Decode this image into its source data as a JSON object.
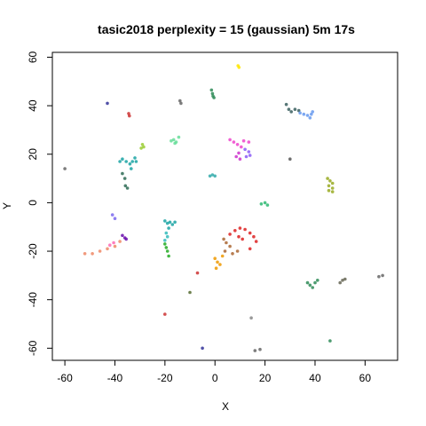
{
  "chart_data": {
    "type": "scatter",
    "title": "tasic2018 perplexity = 15 (gaussian) 5m 17s",
    "xlabel": "X",
    "ylabel": "Y",
    "xlim": [
      -65,
      73
    ],
    "ylim": [
      -65,
      62
    ],
    "xticks": [
      -60,
      -40,
      -20,
      0,
      20,
      40,
      60
    ],
    "yticks": [
      -60,
      -40,
      -20,
      0,
      20,
      40,
      60
    ],
    "grid": false,
    "legend": "none",
    "clusters": [
      {
        "color": "#ffe600",
        "points": [
          [
            9.2,
            56.5
          ],
          [
            9.6,
            55.8
          ]
        ]
      },
      {
        "color": "#333399",
        "points": [
          [
            -43.0,
            41.0
          ]
        ]
      },
      {
        "color": "#cc3333",
        "points": [
          [
            -34.5,
            36.8
          ],
          [
            -34.2,
            35.8
          ]
        ]
      },
      {
        "color": "#666666",
        "points": [
          [
            -60.0,
            14.0
          ]
        ]
      },
      {
        "color": "#666666",
        "points": [
          [
            -14.0,
            42.0
          ],
          [
            -13.6,
            41.0
          ]
        ]
      },
      {
        "color": "#2e8b57",
        "points": [
          [
            -1.4,
            46.5
          ],
          [
            -1.0,
            45.0
          ],
          [
            -0.8,
            44.0
          ],
          [
            -0.4,
            43.3
          ]
        ]
      },
      {
        "color": "#3a5f5f",
        "points": [
          [
            28.5,
            40.5
          ],
          [
            29.5,
            38.5
          ],
          [
            30.5,
            37.5
          ],
          [
            32.0,
            38.5
          ],
          [
            33.5,
            38.0
          ]
        ]
      },
      {
        "color": "#6699ee",
        "points": [
          [
            34.0,
            37.0
          ],
          [
            35.5,
            36.5
          ],
          [
            37.0,
            36.0
          ],
          [
            38.0,
            35.0
          ],
          [
            38.5,
            36.5
          ],
          [
            39.0,
            37.5
          ]
        ]
      },
      {
        "color": "#555555",
        "points": [
          [
            30.0,
            18.0
          ]
        ]
      },
      {
        "color": "#9acd32",
        "points": [
          [
            -29.0,
            24.0
          ],
          [
            -28.5,
            23.0
          ],
          [
            -29.5,
            22.5
          ]
        ]
      },
      {
        "color": "#66dd99",
        "points": [
          [
            -17.5,
            25.5
          ],
          [
            -16.5,
            26.0
          ],
          [
            -15.5,
            25.0
          ],
          [
            -14.5,
            27.0
          ],
          [
            -16.0,
            24.5
          ]
        ]
      },
      {
        "color": "#1aa3a3",
        "points": [
          [
            -38.0,
            17.0
          ],
          [
            -37.0,
            18.0
          ],
          [
            -35.5,
            17.0
          ],
          [
            -34.0,
            16.0
          ],
          [
            -33.0,
            17.0
          ],
          [
            -32.0,
            18.5
          ],
          [
            -31.5,
            17.0
          ],
          [
            -33.5,
            14.0
          ]
        ]
      },
      {
        "color": "#2e6b55",
        "points": [
          [
            -37.0,
            12.0
          ],
          [
            -36.0,
            10.0
          ],
          [
            -35.8,
            7.0
          ],
          [
            -35.0,
            6.0
          ]
        ]
      },
      {
        "color": "#ee44cc",
        "points": [
          [
            6.0,
            26.0
          ],
          [
            7.5,
            25.0
          ],
          [
            9.0,
            24.0
          ],
          [
            10.5,
            23.0
          ],
          [
            11.5,
            25.5
          ],
          [
            13.5,
            25.0
          ]
        ]
      },
      {
        "color": "#8b5cf6",
        "points": [
          [
            12.0,
            22.0
          ],
          [
            13.5,
            21.0
          ],
          [
            14.0,
            19.5
          ],
          [
            12.5,
            19.0
          ]
        ]
      },
      {
        "color": "#cc33cc",
        "points": [
          [
            8.5,
            19.0
          ],
          [
            9.5,
            20.5
          ],
          [
            10.0,
            18.0
          ]
        ]
      },
      {
        "color": "#33aaaa",
        "points": [
          [
            -2.0,
            11.0
          ],
          [
            -1.0,
            11.5
          ],
          [
            0.0,
            11.0
          ]
        ]
      },
      {
        "color": "#99aa22",
        "points": [
          [
            45.0,
            10.0
          ],
          [
            46.0,
            9.0
          ],
          [
            47.0,
            8.0
          ],
          [
            45.5,
            7.0
          ],
          [
            47.0,
            6.0
          ],
          [
            45.5,
            5.0
          ],
          [
            47.0,
            4.5
          ]
        ]
      },
      {
        "color": "#2eb872",
        "points": [
          [
            18.5,
            -0.5
          ],
          [
            20.0,
            0.0
          ],
          [
            21.0,
            -1.0
          ]
        ]
      },
      {
        "color": "#1aa3a3",
        "points": [
          [
            -20.0,
            -7.5
          ],
          [
            -19.0,
            -8.5
          ],
          [
            -18.0,
            -8.0
          ],
          [
            -17.0,
            -9.0
          ],
          [
            -16.0,
            -8.0
          ],
          [
            -18.5,
            -10.5
          ]
        ]
      },
      {
        "color": "#33bbbb",
        "points": [
          [
            -19.5,
            -12.5
          ],
          [
            -19.0,
            -14.0
          ],
          [
            -20.0,
            -15.5
          ]
        ]
      },
      {
        "color": "#22aa22",
        "points": [
          [
            -20.0,
            -17.0
          ],
          [
            -19.5,
            -18.5
          ],
          [
            -19.0,
            -20.0
          ],
          [
            -18.5,
            -22.0
          ]
        ]
      },
      {
        "color": "#7b68ee",
        "points": [
          [
            -41.0,
            -5.0
          ],
          [
            -40.0,
            -6.5
          ]
        ]
      },
      {
        "color": "#6a0dad",
        "points": [
          [
            -37.0,
            -13.5
          ],
          [
            -36.0,
            -14.5
          ],
          [
            -35.5,
            -15.0
          ]
        ]
      },
      {
        "color": "#ee8866",
        "points": [
          [
            -52.0,
            -21.0
          ],
          [
            -49.0,
            -21.0
          ],
          [
            -46.0,
            -20.0
          ],
          [
            -43.0,
            -19.0
          ],
          [
            -40.0,
            -18.0
          ],
          [
            -38.0,
            -16.0
          ]
        ]
      },
      {
        "color": "#ff69b4",
        "points": [
          [
            -42.0,
            -17.5
          ],
          [
            -40.5,
            -16.5
          ]
        ]
      },
      {
        "color": "#dd2222",
        "points": [
          [
            6.0,
            -13.0
          ],
          [
            8.0,
            -11.5
          ],
          [
            10.0,
            -10.5
          ],
          [
            12.0,
            -11.0
          ],
          [
            14.0,
            -12.5
          ],
          [
            15.5,
            -14.0
          ],
          [
            16.5,
            -16.0
          ],
          [
            14.0,
            -19.0
          ],
          [
            9.5,
            -14.0
          ],
          [
            11.0,
            -15.0
          ]
        ]
      },
      {
        "color": "#aa6633",
        "points": [
          [
            3.5,
            -15.0
          ],
          [
            4.5,
            -16.5
          ],
          [
            6.0,
            -18.0
          ],
          [
            4.0,
            -20.0
          ],
          [
            7.0,
            -21.0
          ],
          [
            9.0,
            -20.0
          ]
        ]
      },
      {
        "color": "#ee9900",
        "points": [
          [
            0.0,
            -23.0
          ],
          [
            1.0,
            -24.5
          ],
          [
            2.0,
            -25.5
          ],
          [
            0.5,
            -27.0
          ],
          [
            3.0,
            -22.0
          ]
        ]
      },
      {
        "color": "#cc3333",
        "points": [
          [
            -7.0,
            -29.0
          ]
        ]
      },
      {
        "color": "#556b2f",
        "points": [
          [
            -10.0,
            -37.0
          ]
        ]
      },
      {
        "color": "#cc3333",
        "points": [
          [
            -20.0,
            -46.0
          ]
        ]
      },
      {
        "color": "#888888",
        "points": [
          [
            14.5,
            -47.5
          ]
        ]
      },
      {
        "color": "#333399",
        "points": [
          [
            -5.0,
            -60.0
          ]
        ]
      },
      {
        "color": "#666666",
        "points": [
          [
            16.0,
            -61.0
          ],
          [
            18.0,
            -60.5
          ]
        ]
      },
      {
        "color": "#2e8b57",
        "points": [
          [
            37.0,
            -33.0
          ],
          [
            38.0,
            -34.0
          ],
          [
            39.0,
            -35.0
          ],
          [
            40.0,
            -33.0
          ],
          [
            41.0,
            -32.0
          ]
        ]
      },
      {
        "color": "#666655",
        "points": [
          [
            50.0,
            -33.0
          ],
          [
            51.0,
            -32.0
          ],
          [
            52.0,
            -31.5
          ]
        ]
      },
      {
        "color": "#666666",
        "points": [
          [
            65.5,
            -30.5
          ],
          [
            67.0,
            -30.0
          ]
        ]
      },
      {
        "color": "#2e8b57",
        "points": [
          [
            46.0,
            -57.0
          ]
        ]
      }
    ]
  }
}
